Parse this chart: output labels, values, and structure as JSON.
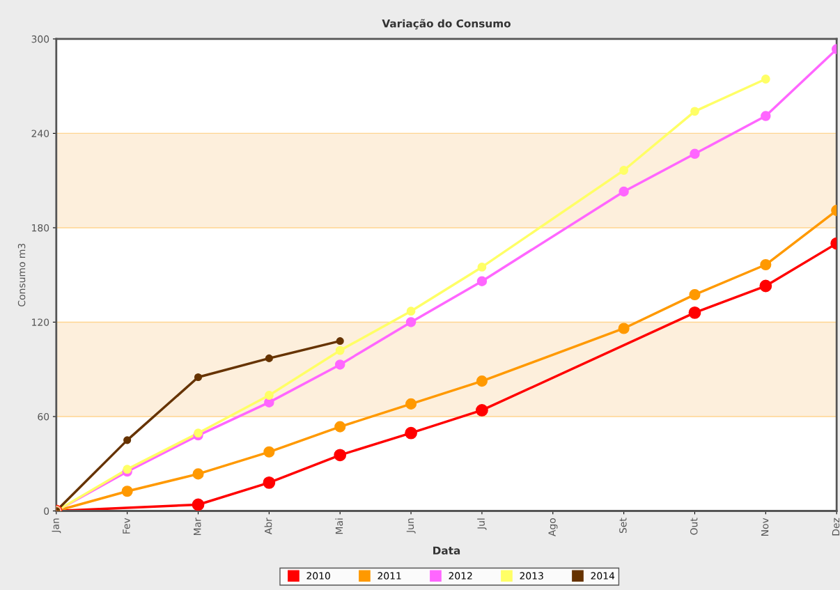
{
  "chart_data": {
    "type": "line",
    "title": "Variação do Consumo",
    "xlabel": "Data",
    "ylabel": "Consumo m3",
    "categories": [
      "Jan",
      "Fev",
      "Mar",
      "Abr",
      "Mai",
      "Jun",
      "Jul",
      "Ago",
      "Set",
      "Out",
      "Nov",
      "Dez"
    ],
    "series": [
      {
        "name": "2010",
        "color": "#ff0000",
        "values": [
          0,
          null,
          4,
          18,
          35.5,
          49.5,
          64,
          null,
          null,
          126,
          143,
          170
        ]
      },
      {
        "name": "2011",
        "color": "#ff9900",
        "values": [
          0,
          12.5,
          23.5,
          37.5,
          53.5,
          68,
          82.5,
          null,
          116,
          137.5,
          156.5,
          191
        ]
      },
      {
        "name": "2012",
        "color": "#ff66ff",
        "values": [
          0,
          25,
          48,
          69,
          93,
          120,
          146,
          null,
          203,
          227,
          251,
          293.5
        ]
      },
      {
        "name": "2013",
        "color": "#ffff66",
        "values": [
          0,
          26.5,
          49.5,
          73.5,
          102,
          127,
          155,
          null,
          216.5,
          254,
          274.5,
          null
        ]
      },
      {
        "name": "2014",
        "color": "#663300",
        "values": [
          0,
          45,
          85,
          97,
          108,
          null,
          null,
          null,
          null,
          null,
          null,
          null
        ]
      }
    ],
    "ylim": [
      0,
      300
    ],
    "yticks": [
      0,
      60,
      120,
      180,
      240,
      300
    ],
    "bands": [
      {
        "axis": "y",
        "from": 60,
        "to": 120,
        "color": "#fdefdc"
      },
      {
        "axis": "y",
        "from": 180,
        "to": 240,
        "color": "#fdefdc"
      }
    ],
    "grid": false,
    "legend": "bottom",
    "marker": "circle",
    "line_style": "solid"
  }
}
